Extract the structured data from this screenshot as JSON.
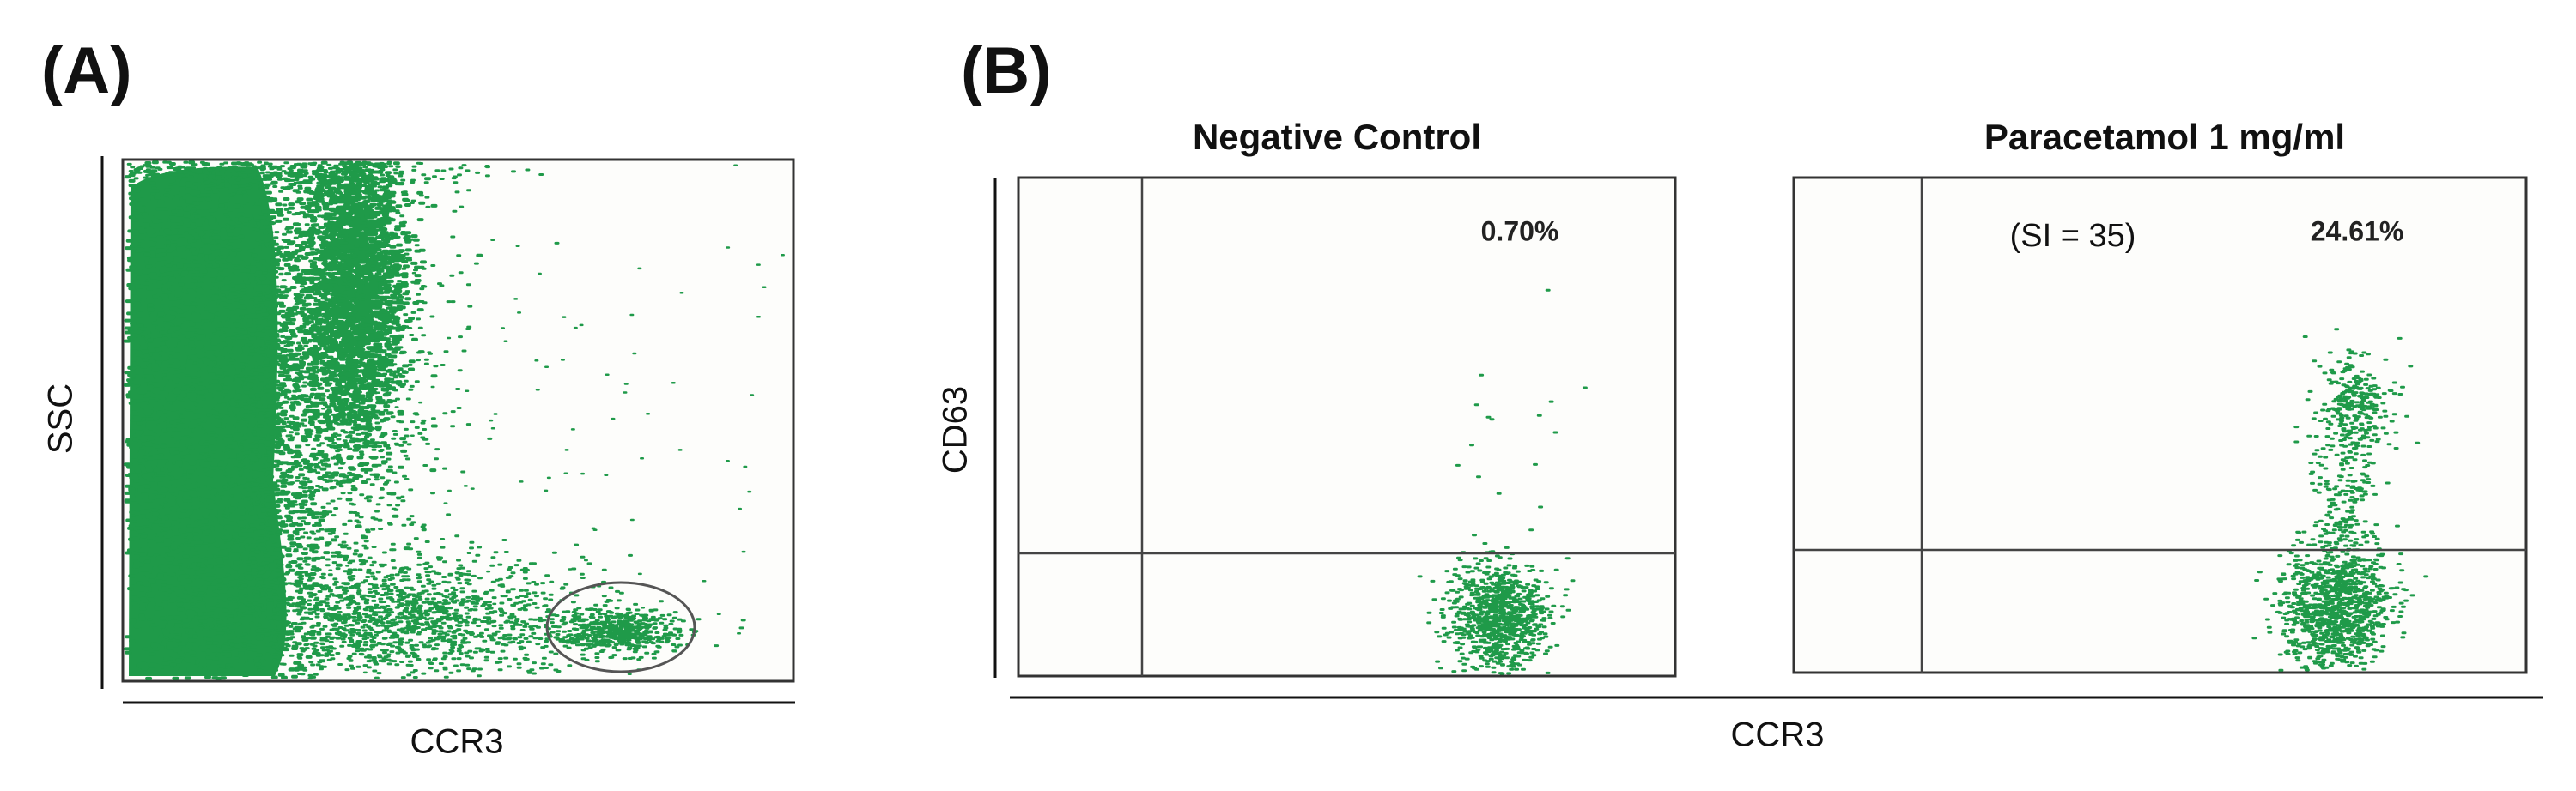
{
  "panels": [
    {
      "label": "(A)",
      "y_axis": "SSC",
      "x_axis": "CCR3"
    },
    {
      "label": "(B)",
      "y_axis": "CD63",
      "x_axis": "CCR3",
      "plots": [
        {
          "title": "Negative Control",
          "percent": "0.70%"
        },
        {
          "title": "Paracetamol 1 mg/ml",
          "annotation": "(SI = 35)",
          "percent": "24.61%"
        }
      ]
    }
  ]
}
